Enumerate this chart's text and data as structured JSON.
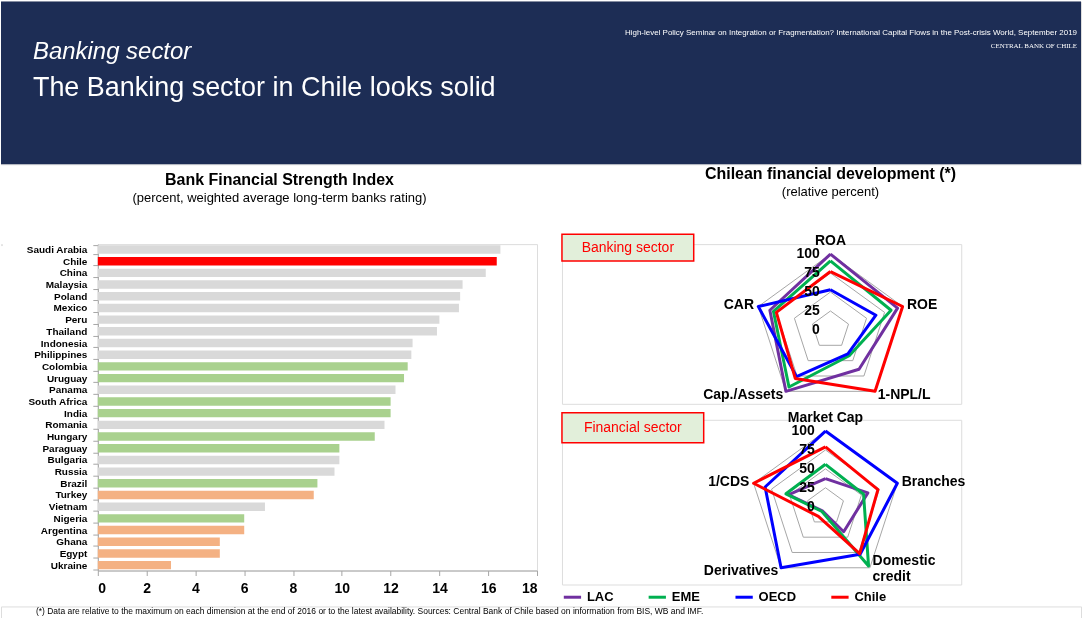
{
  "chart_data": [
    {
      "type": "bar",
      "orientation": "horizontal",
      "title": "Bank Financial Strength Index",
      "subtitle": "(percent, weighted average long-term banks rating)",
      "categories": [
        "Saudi Arabia",
        "Chile",
        "China",
        "Malaysia",
        "Poland",
        "Mexico",
        "Peru",
        "Thailand",
        "Indonesia",
        "Philippines",
        "Colombia",
        "Uruguay",
        "Panama",
        "South Africa",
        "India",
        "Romania",
        "Hungary",
        "Paraguay",
        "Bulgaria",
        "Russia",
        "Brazil",
        "Turkey",
        "Vietnam",
        "Nigeria",
        "Argentina",
        "Ghana",
        "Egypt",
        "Ukraine"
      ],
      "values": [
        16.5,
        16.35,
        15.9,
        14.95,
        14.85,
        14.8,
        14.0,
        13.9,
        12.9,
        12.85,
        12.7,
        12.55,
        12.2,
        12.0,
        12.0,
        11.75,
        11.35,
        9.9,
        9.9,
        9.7,
        9.0,
        8.85,
        6.85,
        6.0,
        6.0,
        5.0,
        5.0,
        3.0
      ],
      "colors": [
        "#d9d9d9",
        "#ff0000",
        "#d9d9d9",
        "#d9d9d9",
        "#d9d9d9",
        "#d9d9d9",
        "#d9d9d9",
        "#d9d9d9",
        "#d9d9d9",
        "#d9d9d9",
        "#a9d18e",
        "#a9d18e",
        "#d9d9d9",
        "#a9d18e",
        "#a9d18e",
        "#d9d9d9",
        "#a9d18e",
        "#a9d18e",
        "#d9d9d9",
        "#d9d9d9",
        "#a9d18e",
        "#f4b183",
        "#d9d9d9",
        "#a9d18e",
        "#f4b183",
        "#f4b183",
        "#f4b183",
        "#f4b183"
      ],
      "xlim": [
        0,
        18
      ],
      "xticks": [
        0,
        2,
        4,
        6,
        8,
        10,
        12,
        14,
        16,
        18
      ],
      "annotations": [
        "Banking sector",
        "The Banking sector in Chile looks solid",
        "High-level Policy Seminar on Integration or Fragmentation? International Capital Flows in the Post-crisis World, September 2019",
        "CENTRAL BANK OF CHILE"
      ]
    },
    {
      "type": "radar",
      "title": "Chilean financial development (*)",
      "subtitle": "(relative percent)",
      "categories": [
        "ROA",
        "ROE",
        "1-NPL/L",
        "Cap./Assets",
        "CAR"
      ],
      "series": [
        {
          "color": "#7030a0",
          "values": [
            100,
            93,
            64,
            100,
            84
          ]
        },
        {
          "color": "#00b050",
          "values": [
            91,
            84,
            42,
            93,
            79
          ]
        },
        {
          "color": "#0000ff",
          "values": [
            53,
            63,
            39,
            76,
            100
          ]
        },
        {
          "color": "#ff0000",
          "values": [
            77,
            100,
            100,
            79,
            75
          ]
        }
      ],
      "ylim": [
        0,
        100
      ],
      "yticks": [
        0,
        25,
        50,
        75,
        100
      ],
      "grid": true,
      "annotations": [
        "Banking sector"
      ]
    },
    {
      "type": "radar",
      "categories": [
        "Market Cap",
        "Branches",
        "Domestic credit",
        "Derivatives",
        "1/CDS"
      ],
      "series": [
        {
          "name": "LAC",
          "color": "#7030a0",
          "values": [
            37,
            59,
            41,
            7,
            51
          ]
        },
        {
          "name": "EME",
          "color": "#00b050",
          "values": [
            56,
            53,
            97,
            8,
            55
          ]
        },
        {
          "name": "OECD",
          "color": "#0000ff",
          "values": [
            100,
            100,
            78,
            100,
            84
          ]
        },
        {
          "name": "Chile",
          "color": "#ff0000",
          "values": [
            79,
            73,
            77,
            16,
            100
          ]
        }
      ],
      "ylim": [
        0,
        100
      ],
      "yticks": [
        0,
        25,
        50,
        75,
        100
      ],
      "grid": true,
      "legend": "bottom",
      "annotations": [
        "Financial sector",
        "(*) Data are relative to the maximum on each dimension at the end of 2016 or to the latest availability. Sources: Central Bank of Chile based on information from BIS, WB and IMF."
      ]
    }
  ]
}
